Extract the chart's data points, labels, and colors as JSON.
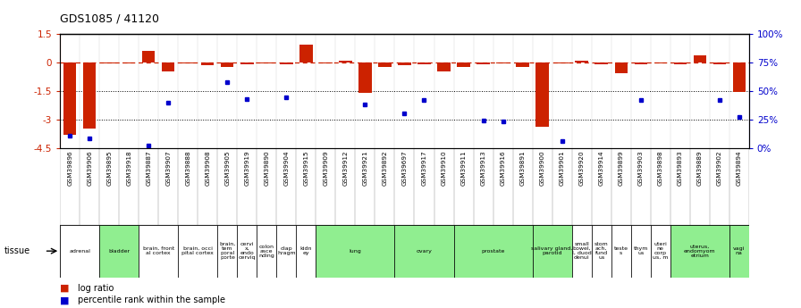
{
  "title": "GDS1085 / 41120",
  "gsm_labels": [
    "GSM39896",
    "GSM39906",
    "GSM39895",
    "GSM39918",
    "GSM39887",
    "GSM39907",
    "GSM39888",
    "GSM39908",
    "GSM39905",
    "GSM39919",
    "GSM39890",
    "GSM39904",
    "GSM39915",
    "GSM39909",
    "GSM39912",
    "GSM39921",
    "GSM39892",
    "GSM39697",
    "GSM39917",
    "GSM39910",
    "GSM39911",
    "GSM39913",
    "GSM39916",
    "GSM39891",
    "GSM39900",
    "GSM39901",
    "GSM39920",
    "GSM39914",
    "GSM39899",
    "GSM39903",
    "GSM39898",
    "GSM39893",
    "GSM39889",
    "GSM39902",
    "GSM39894"
  ],
  "log_ratio": [
    -3.8,
    -3.5,
    -0.05,
    -0.05,
    0.6,
    -0.5,
    -0.05,
    -0.15,
    -0.25,
    -0.08,
    -0.05,
    -0.08,
    0.95,
    -0.05,
    0.1,
    -1.6,
    -0.25,
    -0.15,
    -0.1,
    -0.5,
    -0.25,
    -0.1,
    -0.05,
    -0.25,
    -3.4,
    -0.05,
    0.1,
    -0.1,
    -0.55,
    -0.1,
    -0.05,
    -0.1,
    0.35,
    -0.12,
    -1.55
  ],
  "percentile_rank": [
    11,
    8,
    null,
    null,
    2,
    40,
    null,
    null,
    58,
    43,
    null,
    44,
    null,
    null,
    null,
    38,
    null,
    30,
    42,
    null,
    null,
    24,
    23,
    null,
    null,
    6,
    null,
    null,
    null,
    42,
    null,
    null,
    null,
    42,
    27
  ],
  "tissue_groups": [
    {
      "label": "adrenal",
      "start": 0,
      "end": 1,
      "color": "#ffffff"
    },
    {
      "label": "bladder",
      "start": 2,
      "end": 3,
      "color": "#90ee90"
    },
    {
      "label": "brain, front\nal cortex",
      "start": 4,
      "end": 5,
      "color": "#ffffff"
    },
    {
      "label": "brain, occi\npital cortex",
      "start": 6,
      "end": 7,
      "color": "#ffffff"
    },
    {
      "label": "brain,\ntem\nporal\nporte",
      "start": 8,
      "end": 8,
      "color": "#ffffff"
    },
    {
      "label": "cervi\nx,\nendo\ncerviq",
      "start": 9,
      "end": 9,
      "color": "#ffffff"
    },
    {
      "label": "colon\nasce\nnding",
      "start": 10,
      "end": 10,
      "color": "#ffffff"
    },
    {
      "label": "diap\nhragm",
      "start": 11,
      "end": 11,
      "color": "#ffffff"
    },
    {
      "label": "kidn\ney",
      "start": 12,
      "end": 12,
      "color": "#ffffff"
    },
    {
      "label": "lung",
      "start": 13,
      "end": 16,
      "color": "#90ee90"
    },
    {
      "label": "ovary",
      "start": 17,
      "end": 19,
      "color": "#90ee90"
    },
    {
      "label": "prostate",
      "start": 20,
      "end": 23,
      "color": "#90ee90"
    },
    {
      "label": "salivary gland,\nparotid",
      "start": 24,
      "end": 25,
      "color": "#90ee90"
    },
    {
      "label": "small\nbowel,\nI, duod\ndenui",
      "start": 26,
      "end": 26,
      "color": "#ffffff"
    },
    {
      "label": "stom\nach,\nfund\nus",
      "start": 27,
      "end": 27,
      "color": "#ffffff"
    },
    {
      "label": "teste\ns",
      "start": 28,
      "end": 28,
      "color": "#ffffff"
    },
    {
      "label": "thym\nus",
      "start": 29,
      "end": 29,
      "color": "#ffffff"
    },
    {
      "label": "uteri\nne\ncorp\nus, m",
      "start": 30,
      "end": 30,
      "color": "#ffffff"
    },
    {
      "label": "uterus,\nendomyom\netrium",
      "start": 31,
      "end": 33,
      "color": "#90ee90"
    },
    {
      "label": "vagi\nna",
      "start": 34,
      "end": 34,
      "color": "#90ee90"
    }
  ],
  "ylim": [
    -4.5,
    1.5
  ],
  "y2lim": [
    0,
    100
  ],
  "yticks": [
    1.5,
    0,
    -1.5,
    -3.0,
    -4.5
  ],
  "y2ticks": [
    100,
    75,
    50,
    25,
    0
  ],
  "hlines": [
    -1.5,
    -3.0
  ],
  "bar_color": "#cc2200",
  "dot_color": "#0000cc",
  "background_color": "#ffffff"
}
